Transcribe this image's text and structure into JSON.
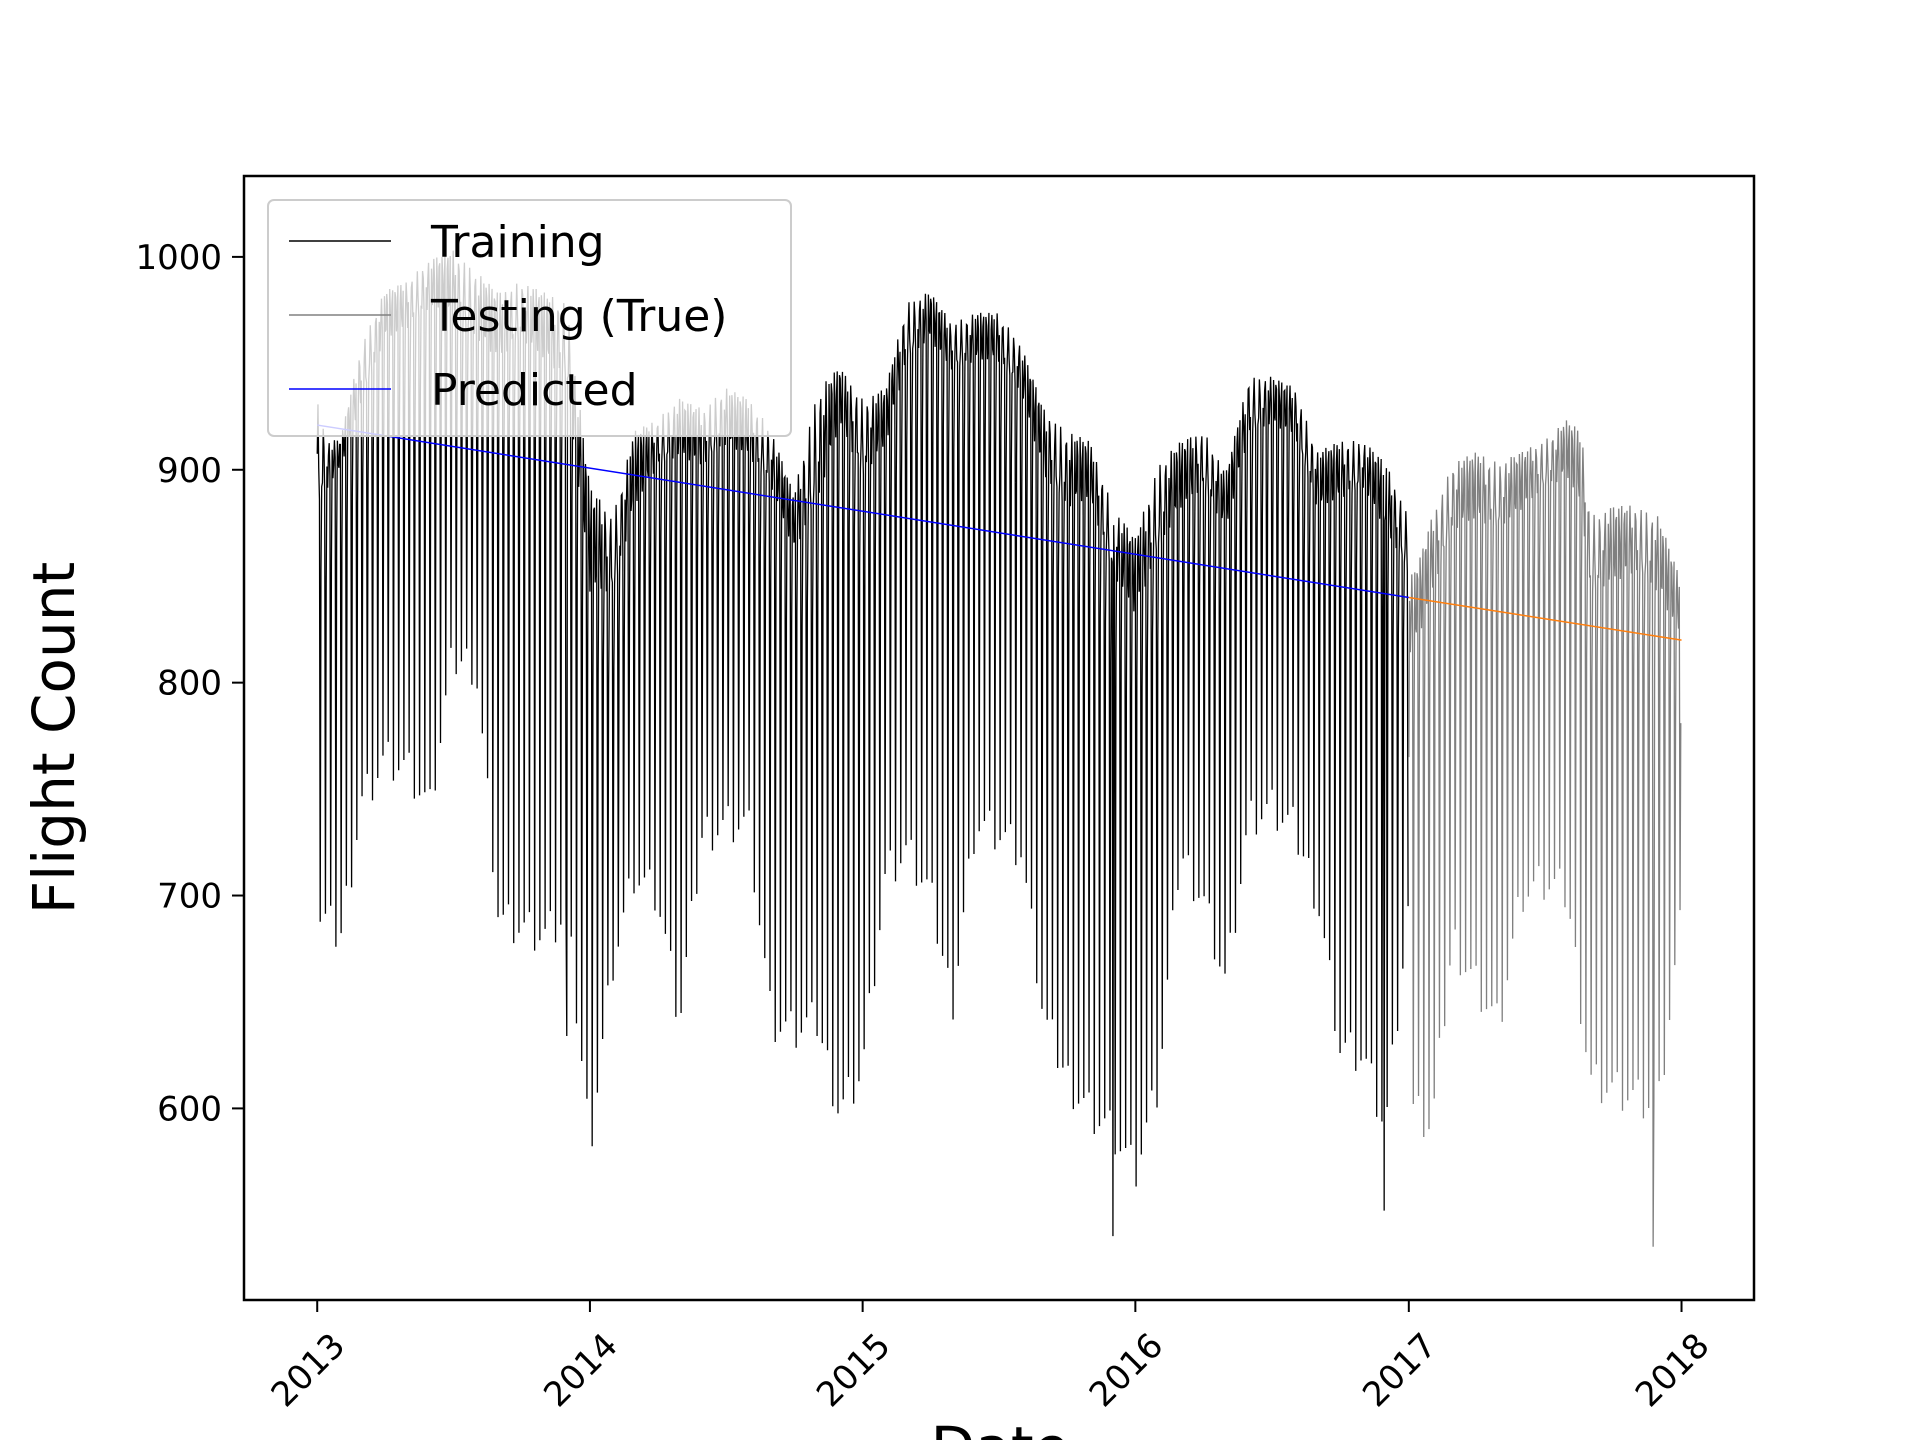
{
  "chart_data": {
    "type": "line",
    "title": "",
    "xlabel": "Date",
    "ylabel": "Flight Count",
    "x_ticks": [
      "2013",
      "2014",
      "2015",
      "2016",
      "2017",
      "2018"
    ],
    "y_ticks": [
      "600",
      "700",
      "800",
      "900",
      "1000"
    ],
    "xlim": [
      "2012-09-25",
      "2018-04-08"
    ],
    "ylim": [
      510,
      1038
    ],
    "grid": false,
    "legend_position": "upper-left",
    "series": [
      {
        "name": "Training",
        "color": "#000000",
        "daily": true,
        "x_start": "2013-01-01",
        "x_end": "2016-12-31",
        "weekday_envelope": {
          "x": [
            "2013-01-01",
            "2013-01-15",
            "2013-02-01",
            "2013-03-01",
            "2013-04-01",
            "2013-05-01",
            "2013-06-01",
            "2013-07-01",
            "2013-08-01",
            "2013-09-01",
            "2013-10-01",
            "2013-11-01",
            "2013-12-01",
            "2014-01-01",
            "2014-02-01",
            "2014-03-01",
            "2014-04-01",
            "2014-05-01",
            "2014-06-01",
            "2014-07-01",
            "2014-08-01",
            "2014-09-01",
            "2014-10-01",
            "2014-11-01",
            "2014-12-01",
            "2015-01-01",
            "2015-02-01",
            "2015-03-01",
            "2015-04-01",
            "2015-05-01",
            "2015-06-01",
            "2015-07-01",
            "2015-08-01",
            "2015-09-01",
            "2015-10-01",
            "2015-11-01",
            "2015-12-01",
            "2016-01-01",
            "2016-02-01",
            "2016-03-01",
            "2016-04-01",
            "2016-05-01",
            "2016-06-01",
            "2016-07-01",
            "2016-08-01",
            "2016-09-01",
            "2016-10-01",
            "2016-11-01",
            "2016-12-01",
            "2016-12-31"
          ],
          "high": [
            935,
            915,
            915,
            960,
            985,
            990,
            1000,
            1005,
            995,
            985,
            990,
            985,
            980,
            895,
            880,
            920,
            925,
            935,
            930,
            940,
            935,
            920,
            890,
            940,
            950,
            935,
            940,
            980,
            985,
            970,
            975,
            975,
            960,
            930,
            920,
            915,
            885,
            870,
            905,
            915,
            920,
            900,
            945,
            945,
            940,
            910,
            915,
            915,
            905,
            880
          ],
          "low": [
            880,
            890,
            900,
            930,
            960,
            965,
            975,
            970,
            960,
            950,
            960,
            950,
            940,
            840,
            840,
            880,
            900,
            905,
            900,
            910,
            905,
            890,
            860,
            880,
            920,
            895,
            910,
            950,
            960,
            945,
            950,
            950,
            935,
            895,
            880,
            885,
            850,
            830,
            860,
            880,
            890,
            870,
            915,
            920,
            915,
            880,
            885,
            890,
            870,
            850
          ]
        },
        "weekend_dips": {
          "x": [
            "2013-01-01",
            "2013-02-01",
            "2013-03-01",
            "2013-04-01",
            "2013-05-01",
            "2013-06-01",
            "2013-07-01",
            "2013-08-01",
            "2013-09-01",
            "2013-10-01",
            "2013-11-01",
            "2013-12-01",
            "2014-01-01",
            "2014-02-01",
            "2014-03-01",
            "2014-04-01",
            "2014-05-01",
            "2014-06-01",
            "2014-07-01",
            "2014-08-01",
            "2014-09-01",
            "2014-10-01",
            "2014-11-01",
            "2014-12-01",
            "2015-01-01",
            "2015-02-01",
            "2015-03-01",
            "2015-04-01",
            "2015-05-01",
            "2015-06-01",
            "2015-07-01",
            "2015-08-01",
            "2015-09-01",
            "2015-10-01",
            "2015-11-01",
            "2015-12-01",
            "2016-01-01",
            "2016-02-01",
            "2016-03-01",
            "2016-04-01",
            "2016-05-01",
            "2016-06-01",
            "2016-07-01",
            "2016-08-01",
            "2016-09-01",
            "2016-10-01",
            "2016-11-01",
            "2016-12-01",
            "2016-12-31"
          ],
          "values": [
            690,
            680,
            745,
            765,
            760,
            740,
            810,
            810,
            690,
            685,
            680,
            690,
            585,
            670,
            710,
            700,
            640,
            730,
            735,
            735,
            640,
            635,
            640,
            600,
            620,
            710,
            720,
            700,
            650,
            735,
            730,
            720,
            640,
            615,
            600,
            590,
            570,
            610,
            720,
            700,
            660,
            735,
            740,
            730,
            700,
            630,
            625,
            590,
            690
          ]
        },
        "extreme_lows": [
          [
            "2015-12-02",
            540
          ],
          [
            "2016-11-29",
            552
          ],
          [
            "2013-12-01",
            634
          ]
        ]
      },
      {
        "name": "Testing (True)",
        "color": "#808080",
        "daily": true,
        "x_start": "2017-01-01",
        "x_end": "2017-12-31",
        "weekday_envelope": {
          "x": [
            "2017-01-01",
            "2017-01-15",
            "2017-02-01",
            "2017-03-01",
            "2017-04-01",
            "2017-05-01",
            "2017-06-01",
            "2017-07-01",
            "2017-08-01",
            "2017-08-20",
            "2017-09-01",
            "2017-10-01",
            "2017-11-01",
            "2017-12-01",
            "2017-12-31"
          ],
          "high": [
            850,
            860,
            880,
            905,
            910,
            905,
            910,
            915,
            925,
            920,
            880,
            885,
            885,
            880,
            850
          ],
          "low": [
            810,
            820,
            840,
            870,
            875,
            870,
            880,
            890,
            895,
            880,
            840,
            845,
            850,
            840,
            820
          ]
        },
        "weekend_dips": {
          "x": [
            "2017-01-01",
            "2017-02-01",
            "2017-03-01",
            "2017-04-01",
            "2017-05-01",
            "2017-06-01",
            "2017-07-01",
            "2017-08-01",
            "2017-09-01",
            "2017-10-01",
            "2017-11-01",
            "2017-12-01",
            "2017-12-31"
          ],
          "values": [
            600,
            590,
            680,
            660,
            640,
            700,
            705,
            700,
            615,
            610,
            605,
            600,
            685
          ]
        },
        "extreme_lows": [
          [
            "2017-11-24",
            535
          ]
        ]
      },
      {
        "name": "Predicted",
        "color": "#0000ff",
        "x": [
          "2013-01-01",
          "2017-01-01"
        ],
        "y": [
          921,
          840
        ]
      },
      {
        "name": "",
        "color": "#ff7f0e",
        "x": [
          "2017-01-01",
          "2018-01-01"
        ],
        "y": [
          840,
          820
        ]
      }
    ]
  }
}
